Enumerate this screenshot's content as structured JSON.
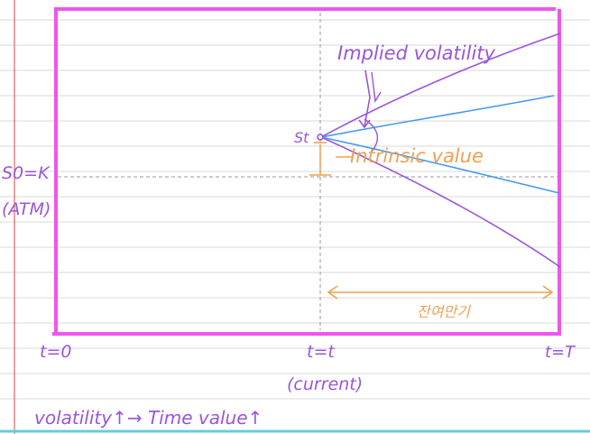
{
  "labels": {
    "implied_volatility": "Implied volatility",
    "intrinsic_value": "Intrinsic value",
    "st": "St",
    "s0_eq_k": "S0=K",
    "atm": "(ATM)",
    "t0": "t=0",
    "t_eq_t": "t=t",
    "current": "(current)",
    "t_eq_T": "t=T",
    "remaining_term": "잔여만기",
    "bottom_note": "volatility↑→ Time value↑"
  },
  "colors": {
    "frame": "#ee55ee",
    "purple_ink": "#9955dd",
    "blue_ink": "#4499ee",
    "orange_ink": "#f0a050",
    "rule_line": "#d8d8d8",
    "margin_line": "#e04040",
    "bottom_rule": "#66ccdd",
    "dashed_guide": "#999999"
  }
}
